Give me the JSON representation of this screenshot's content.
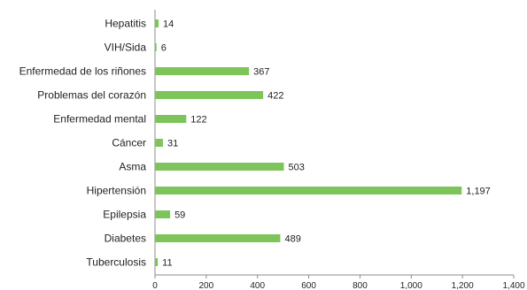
{
  "chart_data": {
    "type": "bar",
    "orientation": "horizontal",
    "title": "",
    "xlabel": "",
    "ylabel": "",
    "categories": [
      "Hepatitis",
      "VIH/Sida",
      "Enfermedad de los riñones",
      "Problemas del corazón",
      "Enfermedad mental",
      "Cáncer",
      "Asma",
      "Hipertensión",
      "Epilepsia",
      "Diabetes",
      "Tuberculosis"
    ],
    "values": [
      14,
      6,
      367,
      422,
      122,
      31,
      503,
      1197,
      59,
      489,
      11
    ],
    "value_labels": [
      "14",
      "6",
      "367",
      "422",
      "122",
      "31",
      "503",
      "1,197",
      "59",
      "489",
      "11"
    ],
    "xlim": [
      0,
      1400
    ],
    "x_ticks": [
      0,
      200,
      400,
      600,
      800,
      1000,
      1200,
      1400
    ],
    "x_tick_labels": [
      "0",
      "200",
      "400",
      "600",
      "800",
      "1,000",
      "1,200",
      "1,400"
    ],
    "bar_color": "#7dc45a",
    "axis_color": "#8c8c8c",
    "grid": false,
    "legend": "none"
  }
}
